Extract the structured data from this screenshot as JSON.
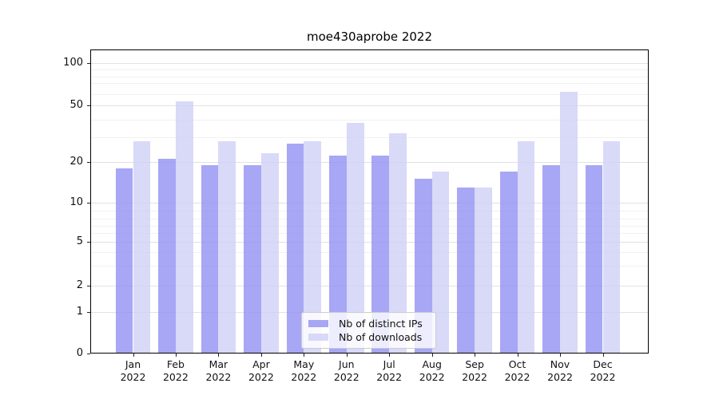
{
  "title": "moe430aprobe 2022",
  "chart_data": {
    "type": "bar",
    "title": "moe430aprobe 2022",
    "categories": [
      "Jan 2022",
      "Feb 2022",
      "Mar 2022",
      "Apr 2022",
      "May 2022",
      "Jun 2022",
      "Jul 2022",
      "Aug 2022",
      "Sep 2022",
      "Oct 2022",
      "Nov 2022",
      "Dec 2022"
    ],
    "series": [
      {
        "name": "Nb of distinct IPs",
        "color": "#9191f3",
        "values": [
          18,
          21,
          19,
          19,
          27,
          22,
          22,
          15,
          13,
          17,
          19,
          19
        ]
      },
      {
        "name": "Nb of downloads",
        "color": "#d0d0f6",
        "values": [
          28,
          53,
          28,
          23,
          28,
          38,
          32,
          17,
          13,
          28,
          62,
          28
        ]
      }
    ],
    "ylabel": "",
    "xlabel": "",
    "yscale": "symlog",
    "ytick_labels": [
      "100",
      "50",
      "20",
      "10",
      "5",
      "2",
      "1",
      "0"
    ],
    "ytick_values": [
      100,
      50,
      20,
      10,
      5,
      2,
      1,
      0
    ],
    "ylim_top_approx": 125,
    "grid": true,
    "legend_position": "lower center",
    "bar_opacity": 0.8
  }
}
